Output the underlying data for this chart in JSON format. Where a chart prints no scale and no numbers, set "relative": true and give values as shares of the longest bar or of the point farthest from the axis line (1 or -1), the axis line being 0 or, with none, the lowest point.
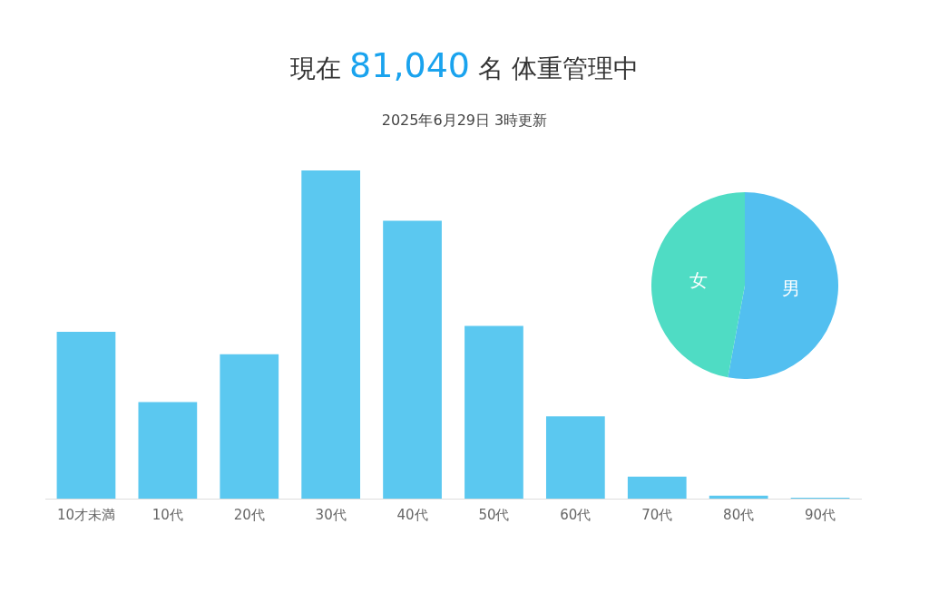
{
  "chart_data": [
    {
      "type": "bar",
      "title": "現在 81,040 名 体重管理中",
      "subtitle": "2025年6月29日 3時更新",
      "relative": true,
      "categories": [
        "10才未満",
        "10代",
        "20代",
        "30代",
        "40代",
        "50代",
        "60代",
        "70代",
        "80代",
        "90代"
      ],
      "values": [
        0.508,
        0.294,
        0.44,
        1,
        0.847,
        0.526,
        0.251,
        0.067,
        0.009,
        0.003
      ],
      "color": "#5bc8f0",
      "grid": false,
      "legend": false
    },
    {
      "type": "pie",
      "categories": [
        "男",
        "女"
      ],
      "values": [
        52.9,
        47.1
      ],
      "colors": [
        "#52bff0",
        "#4fdcc4"
      ],
      "legend": false
    }
  ]
}
